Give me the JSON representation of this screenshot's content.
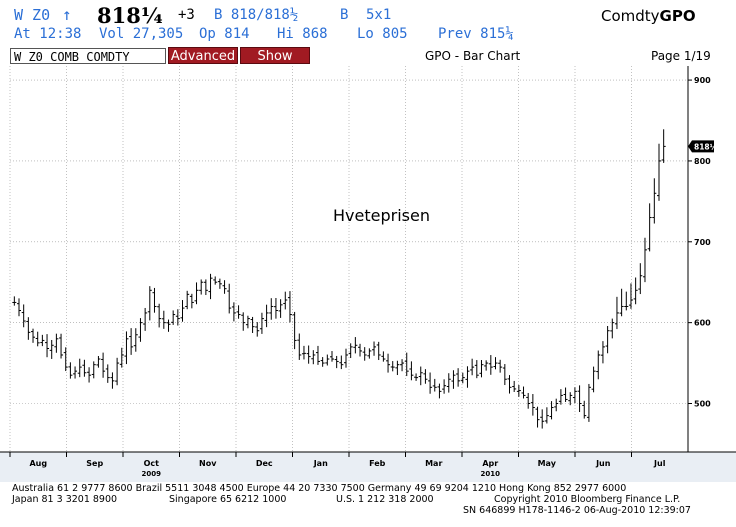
{
  "header": {
    "ticker": "W Z0",
    "arrow": "↑",
    "last_price": "818¼",
    "change": "+3",
    "bid_label": "B",
    "bid": "B 818/818½",
    "ask_label": "B",
    "size": "5x1",
    "brand_prefix": "Comdty",
    "brand_suffix": "GPO",
    "at_time": "At 12:38",
    "volume": "Vol 27,305",
    "open": "Op 814",
    "high": "Hi 868",
    "low": "Lo 805",
    "prev": "Prev 815¼"
  },
  "toolbar": {
    "security_field": "W Z0 COMB COMDTY",
    "advanced_label": "Advanced",
    "show_label": "Show",
    "chart_title": "GPO - Bar Chart",
    "page": "Page 1/19"
  },
  "colors": {
    "header_blue": "#2b6fd6",
    "button_red": "#a11a22",
    "bar_color": "#000000"
  },
  "chart_data": {
    "type": "bar",
    "subtype": "ohlc",
    "annotation": "Hveteprisen",
    "price_label": "818¼",
    "y_ticks": [
      500,
      600,
      700,
      800,
      900
    ],
    "ylim": [
      440,
      910
    ],
    "x_months": [
      "Aug",
      "Sep",
      "Oct",
      "Nov",
      "Dec",
      "Jan",
      "Feb",
      "Mar",
      "Apr",
      "May",
      "Jun",
      "Jul"
    ],
    "x_years": [
      "2009",
      "2010"
    ],
    "grid": true,
    "close_series": [
      625,
      615,
      602,
      588,
      582,
      575,
      578,
      568,
      572,
      580,
      560,
      545,
      535,
      540,
      545,
      538,
      535,
      548,
      555,
      540,
      532,
      528,
      550,
      560,
      580,
      570,
      585,
      600,
      612,
      640,
      620,
      605,
      600,
      598,
      610,
      605,
      618,
      635,
      625,
      640,
      650,
      640,
      655,
      650,
      648,
      642,
      618,
      612,
      610,
      600,
      605,
      595,
      590,
      605,
      612,
      620,
      615,
      622,
      628,
      610,
      578,
      560,
      562,
      558,
      560,
      552,
      550,
      555,
      555,
      552,
      548,
      560,
      570,
      572,
      565,
      560,
      565,
      570,
      560,
      555,
      548,
      545,
      548,
      550,
      540,
      535,
      532,
      538,
      530,
      520,
      520,
      515,
      522,
      530,
      535,
      528,
      532,
      540,
      545,
      535,
      548,
      550,
      545,
      550,
      545,
      530,
      520,
      518,
      516,
      510,
      500,
      495,
      480,
      478,
      485,
      495,
      500,
      510,
      505,
      510,
      515,
      500,
      485,
      520,
      540,
      560,
      570,
      590,
      600,
      612,
      620,
      620,
      628,
      640,
      658,
      690,
      730,
      760,
      800,
      818
    ]
  },
  "footer": {
    "line1": "Australia 61 2 9777 8600 Brazil 5511 3048 4500 Europe 44 20 7330 7500 Germany 49 69 9204 1210 Hong Kong 852 2977 6000",
    "line2a": "Japan 81 3 3201 8900",
    "line2b": "Singapore 65 6212 1000",
    "line2c": "U.S. 1 212 318 2000",
    "line2d": "Copyright 2010 Bloomberg Finance L.P.",
    "line3": "SN 646899 H178-1146-2 06-Aug-2010 12:39:07"
  }
}
